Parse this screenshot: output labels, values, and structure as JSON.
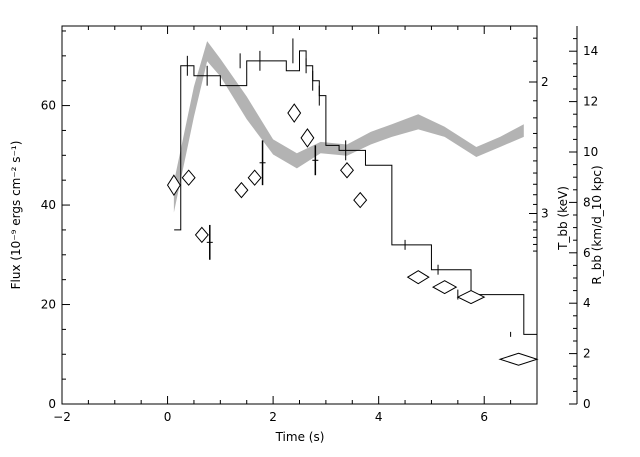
{
  "chart_data": {
    "type": "scatter",
    "xlabel": "Time (s)",
    "ylabel": "Flux (10⁻⁹ ergs cm⁻² s⁻¹)",
    "ylabel_right_temp": "T_bb (keV)",
    "ylabel_right_radius": "R_bb (km/d_10 kpc)",
    "xlim": [
      -2,
      7
    ],
    "ylim": [
      0,
      76
    ],
    "x_ticks": [
      -2,
      0,
      2,
      4,
      6
    ],
    "y_ticks": [
      0,
      20,
      40,
      60
    ],
    "temp_axis": {
      "ticks": [
        2,
        3
      ],
      "log_scale": true
    },
    "radius_axis": {
      "range": [
        0,
        15
      ],
      "ticks": [
        0,
        2,
        4,
        6,
        8,
        10,
        12,
        14
      ]
    },
    "flux_step": {
      "edges": [
        0.125,
        0.25,
        0.5,
        0.75,
        1.0,
        1.25,
        1.5,
        1.75,
        2.0,
        2.25,
        2.5,
        2.625,
        2.75,
        2.875,
        3.0,
        3.25,
        3.5,
        3.75,
        4.25,
        4.75,
        5.0,
        5.25,
        5.75,
        6.25,
        6.75,
        7.0
      ],
      "values": [
        35,
        68,
        66,
        66,
        64,
        64,
        69,
        69,
        69,
        67,
        71,
        68,
        65,
        62,
        52,
        51,
        51,
        48,
        32,
        32,
        27,
        27,
        22,
        22,
        14
      ]
    },
    "flux_errorbars": [
      {
        "x": 0.375,
        "y": 68,
        "err": 2
      },
      {
        "x": 0.75,
        "y": 66,
        "err": 2
      },
      {
        "x": 1.375,
        "y": 69,
        "err": 1.5
      },
      {
        "x": 1.75,
        "y": 69,
        "err": 2
      },
      {
        "x": 2.375,
        "y": 71,
        "err": 2.5
      },
      {
        "x": 2.625,
        "y": 68,
        "err": 1.5
      },
      {
        "x": 2.75,
        "y": 65,
        "err": 2
      },
      {
        "x": 2.875,
        "y": 62,
        "err": 2
      },
      {
        "x": 3.375,
        "y": 51,
        "err": 2
      },
      {
        "x": 4.5,
        "y": 32,
        "err": 1
      },
      {
        "x": 5.125,
        "y": 27,
        "err": 1
      },
      {
        "x": 5.5,
        "y": 22,
        "err": 1
      },
      {
        "x": 6.5,
        "y": 14,
        "err": 0.5
      }
    ],
    "temperature_points": [
      {
        "t": 0.12,
        "flux": 44,
        "dx": 0.12,
        "dy": 2
      },
      {
        "t": 0.4,
        "flux": 45.5,
        "dx": 0.12,
        "dy": 1.5
      },
      {
        "t": 0.65,
        "flux": 34,
        "dx": 0.12,
        "dy": 1.5
      },
      {
        "t": 1.4,
        "flux": 43,
        "dx": 0.12,
        "dy": 1.5
      },
      {
        "t": 1.65,
        "flux": 45.5,
        "dx": 0.12,
        "dy": 1.5
      },
      {
        "t": 2.4,
        "flux": 58.5,
        "dx": 0.12,
        "dy": 1.8
      },
      {
        "t": 2.65,
        "flux": 53.5,
        "dx": 0.12,
        "dy": 1.8
      },
      {
        "t": 3.4,
        "flux": 47,
        "dx": 0.12,
        "dy": 1.5
      },
      {
        "t": 3.65,
        "flux": 41,
        "dx": 0.12,
        "dy": 1.5
      },
      {
        "t": 4.75,
        "flux": 25.5,
        "dx": 0.2,
        "dy": 1.3
      },
      {
        "t": 5.25,
        "flux": 23.5,
        "dx": 0.22,
        "dy": 1.3
      },
      {
        "t": 5.75,
        "flux": 21.5,
        "dx": 0.25,
        "dy": 1.3
      },
      {
        "t": 6.65,
        "flux": 9,
        "dx": 0.35,
        "dy": 1.2
      }
    ],
    "temperature_vertical_segments": [
      {
        "t": 0.8,
        "flux_low": 29,
        "flux_high": 36
      },
      {
        "t": 1.8,
        "flux_low": 44,
        "flux_high": 53
      },
      {
        "t": 2.8,
        "flux_low": 46,
        "flux_high": 52
      }
    ],
    "radius_band": {
      "t": [
        0.12,
        0.5,
        0.75,
        1.0,
        1.5,
        2.0,
        2.45,
        2.9,
        3.4,
        3.85,
        4.25,
        4.75,
        5.25,
        5.85,
        6.3,
        6.75
      ],
      "r_low": [
        7.6,
        11.4,
        13.6,
        13.0,
        11.3,
        9.9,
        9.35,
        9.95,
        9.85,
        10.3,
        10.6,
        10.9,
        10.6,
        9.8,
        10.2,
        10.6
      ],
      "r_high": [
        8.8,
        12.6,
        14.4,
        13.7,
        12.2,
        10.5,
        9.95,
        10.4,
        10.3,
        10.8,
        11.1,
        11.5,
        11.0,
        10.2,
        10.6,
        11.1
      ]
    },
    "grid": false,
    "legend": "none"
  }
}
